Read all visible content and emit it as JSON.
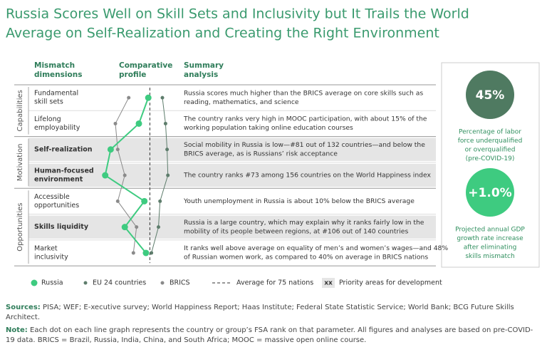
{
  "title": [
    "Russia Scores Well on Skill Sets and Inclusivity but It Trails the World",
    "Average on Self-Realization and Creating the Right Environment"
  ],
  "columns": [
    [
      "Mismatch",
      "dimensions"
    ],
    [
      "Comparative",
      "profile"
    ],
    [
      "Summary",
      "analysis"
    ]
  ],
  "groups": [
    {
      "label": "Capabilities",
      "rows": [
        {
          "dimension": [
            "Fundamental",
            "skill sets"
          ],
          "priority": false,
          "summary": [
            "Russia scores much higher than the BRICS average on core skills such as",
            "reading, mathematics, and science"
          ]
        },
        {
          "dimension": [
            "Lifelong",
            "employability"
          ],
          "priority": false,
          "summary": [
            "The country ranks very high in MOOC participation, with about 15% of the",
            "working population taking online education courses"
          ]
        }
      ]
    },
    {
      "label": "Motivation",
      "rows": [
        {
          "dimension": [
            "Self-realization"
          ],
          "priority": true,
          "summary": [
            "Social mobility in Russia is low—#81 out of 132 countries—and below the",
            "BRICS average, as is Russians’ risk acceptance"
          ]
        },
        {
          "dimension": [
            "Human-focused",
            "environment"
          ],
          "priority": true,
          "summary": [
            "The country ranks #73 among 156 countries on the World Happiness index"
          ]
        }
      ]
    },
    {
      "label": "Opportunities",
      "rows": [
        {
          "dimension": [
            "Accessible",
            "opportunities"
          ],
          "priority": false,
          "summary": [
            "Youth unemployment in Russia is about 10% below the BRICS average"
          ]
        },
        {
          "dimension": [
            "Skills liquidity"
          ],
          "priority": true,
          "summary": [
            "Russia is a large country, which may explain why it ranks fairly low in the",
            "mobility of its people between regions, at #106 out of 140 countries"
          ]
        },
        {
          "dimension": [
            "Market",
            "inclusivity"
          ],
          "priority": false,
          "summary": [
            "It ranks well above average on equality of men’s and women’s wages—and 48%",
            "of Russian women work, as compared to 40% on average in BRICS nations"
          ]
        }
      ]
    }
  ],
  "chart_data": {
    "type": "line",
    "xlim": [
      0,
      100
    ],
    "series": [
      {
        "name": "Russia",
        "color": "#3ecb80",
        "values": [
          62,
          50,
          14,
          7,
          57,
          32,
          59
        ]
      },
      {
        "name": "EU 24 countries",
        "color": "#5e7d6c",
        "values": [
          80,
          84,
          86,
          87,
          77,
          75,
          66
        ]
      },
      {
        "name": "BRICS",
        "color": "#8a8a8a",
        "values": [
          37,
          20,
          23,
          32,
          23,
          47,
          43
        ]
      }
    ],
    "reference_line": {
      "value": 64,
      "label": "Average for 75 nations"
    }
  },
  "priority_legend": {
    "swatch": "xx",
    "label": "Priority areas for development"
  },
  "stats": [
    {
      "value": "45%",
      "color": "#4f7a61",
      "label": [
        "Percentage of labor",
        "force underqualified",
        "or overqualified",
        "(pre-COVID-19)"
      ]
    },
    {
      "value": "+1.0%",
      "color": "#3ecb80",
      "label": [
        "Projected annual GDP",
        "growth rate increase",
        "after eliminating",
        "skills mismatch"
      ]
    }
  ],
  "sources": {
    "label": "Sources:",
    "text": "PISA; WEF; E-xecutive survey; World Happiness Report; Haas Institute; Federal State Statistic Service; World Bank; BCG Future Skills Architect."
  },
  "note": {
    "label": "Note:",
    "text": "Each dot on each line graph represents the country or group’s FSA rank on that parameter. All figures and analyses are based on pre-COVID-19 data. BRICS = Brazil, Russia, India, China, and South Africa; MOOC = massive open online course."
  }
}
